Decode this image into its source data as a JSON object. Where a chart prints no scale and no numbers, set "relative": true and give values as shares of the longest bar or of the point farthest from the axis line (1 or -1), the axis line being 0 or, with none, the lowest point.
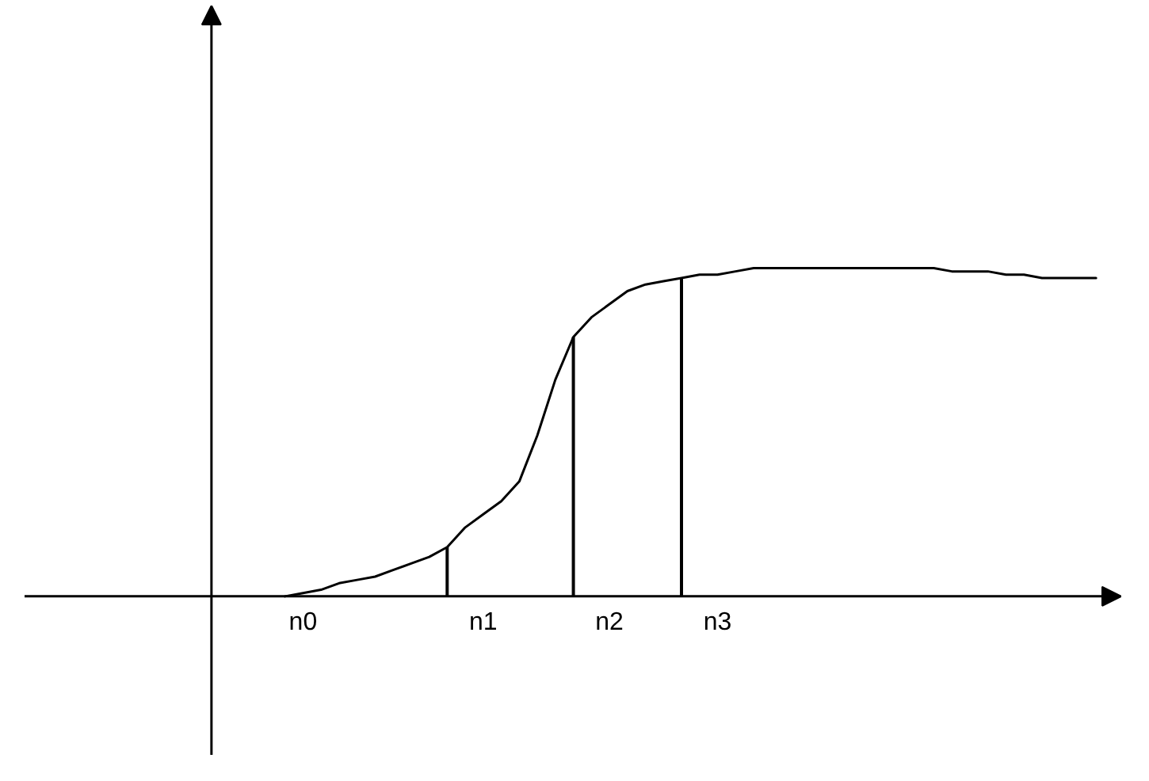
{
  "chart_data": {
    "type": "line",
    "relative": true,
    "grid": false,
    "marker": "none",
    "line_style": "solid",
    "tick_labels": "x",
    "categories": [
      null,
      "n0",
      null,
      null,
      null,
      null,
      null,
      null,
      null,
      null,
      null,
      "n1",
      null,
      null,
      null,
      null,
      null,
      null,
      "n2",
      null,
      null,
      null,
      null,
      null,
      "n3",
      null,
      null,
      null,
      null,
      null,
      null,
      null,
      null,
      null,
      null,
      null,
      null,
      null,
      null,
      null,
      null,
      null,
      null,
      null,
      null,
      null
    ],
    "series": [
      {
        "color": "#000000",
        "values": [
          0,
          0.01,
          0.02,
          0.04,
          0.05,
          0.06,
          0.08,
          0.1,
          0.12,
          0.15,
          0.21,
          0.25,
          0.29,
          0.35,
          0.49,
          0.66,
          0.79,
          0.85,
          0.89,
          0.93,
          0.95,
          0.96,
          0.97,
          0.98,
          0.98,
          0.99,
          1.0,
          1.0,
          1.0,
          1.0,
          1.0,
          1.0,
          1.0,
          1.0,
          1.0,
          1.0,
          1.0,
          0.99,
          0.99,
          0.99,
          0.98,
          0.98,
          0.97,
          0.97,
          0.97,
          0.97
        ]
      },
      {
        "type": "bar",
        "color": "#000000",
        "values": [
          null,
          null,
          null,
          null,
          null,
          null,
          null,
          null,
          null,
          0.15,
          null,
          null,
          null,
          null,
          null,
          null,
          0.79,
          null,
          null,
          null,
          null,
          null,
          0.97,
          null,
          null,
          null,
          null,
          null,
          null,
          null,
          null,
          null,
          null,
          null,
          null,
          null,
          null,
          null,
          null,
          null,
          null,
          null,
          null,
          null,
          null,
          null
        ]
      }
    ]
  }
}
